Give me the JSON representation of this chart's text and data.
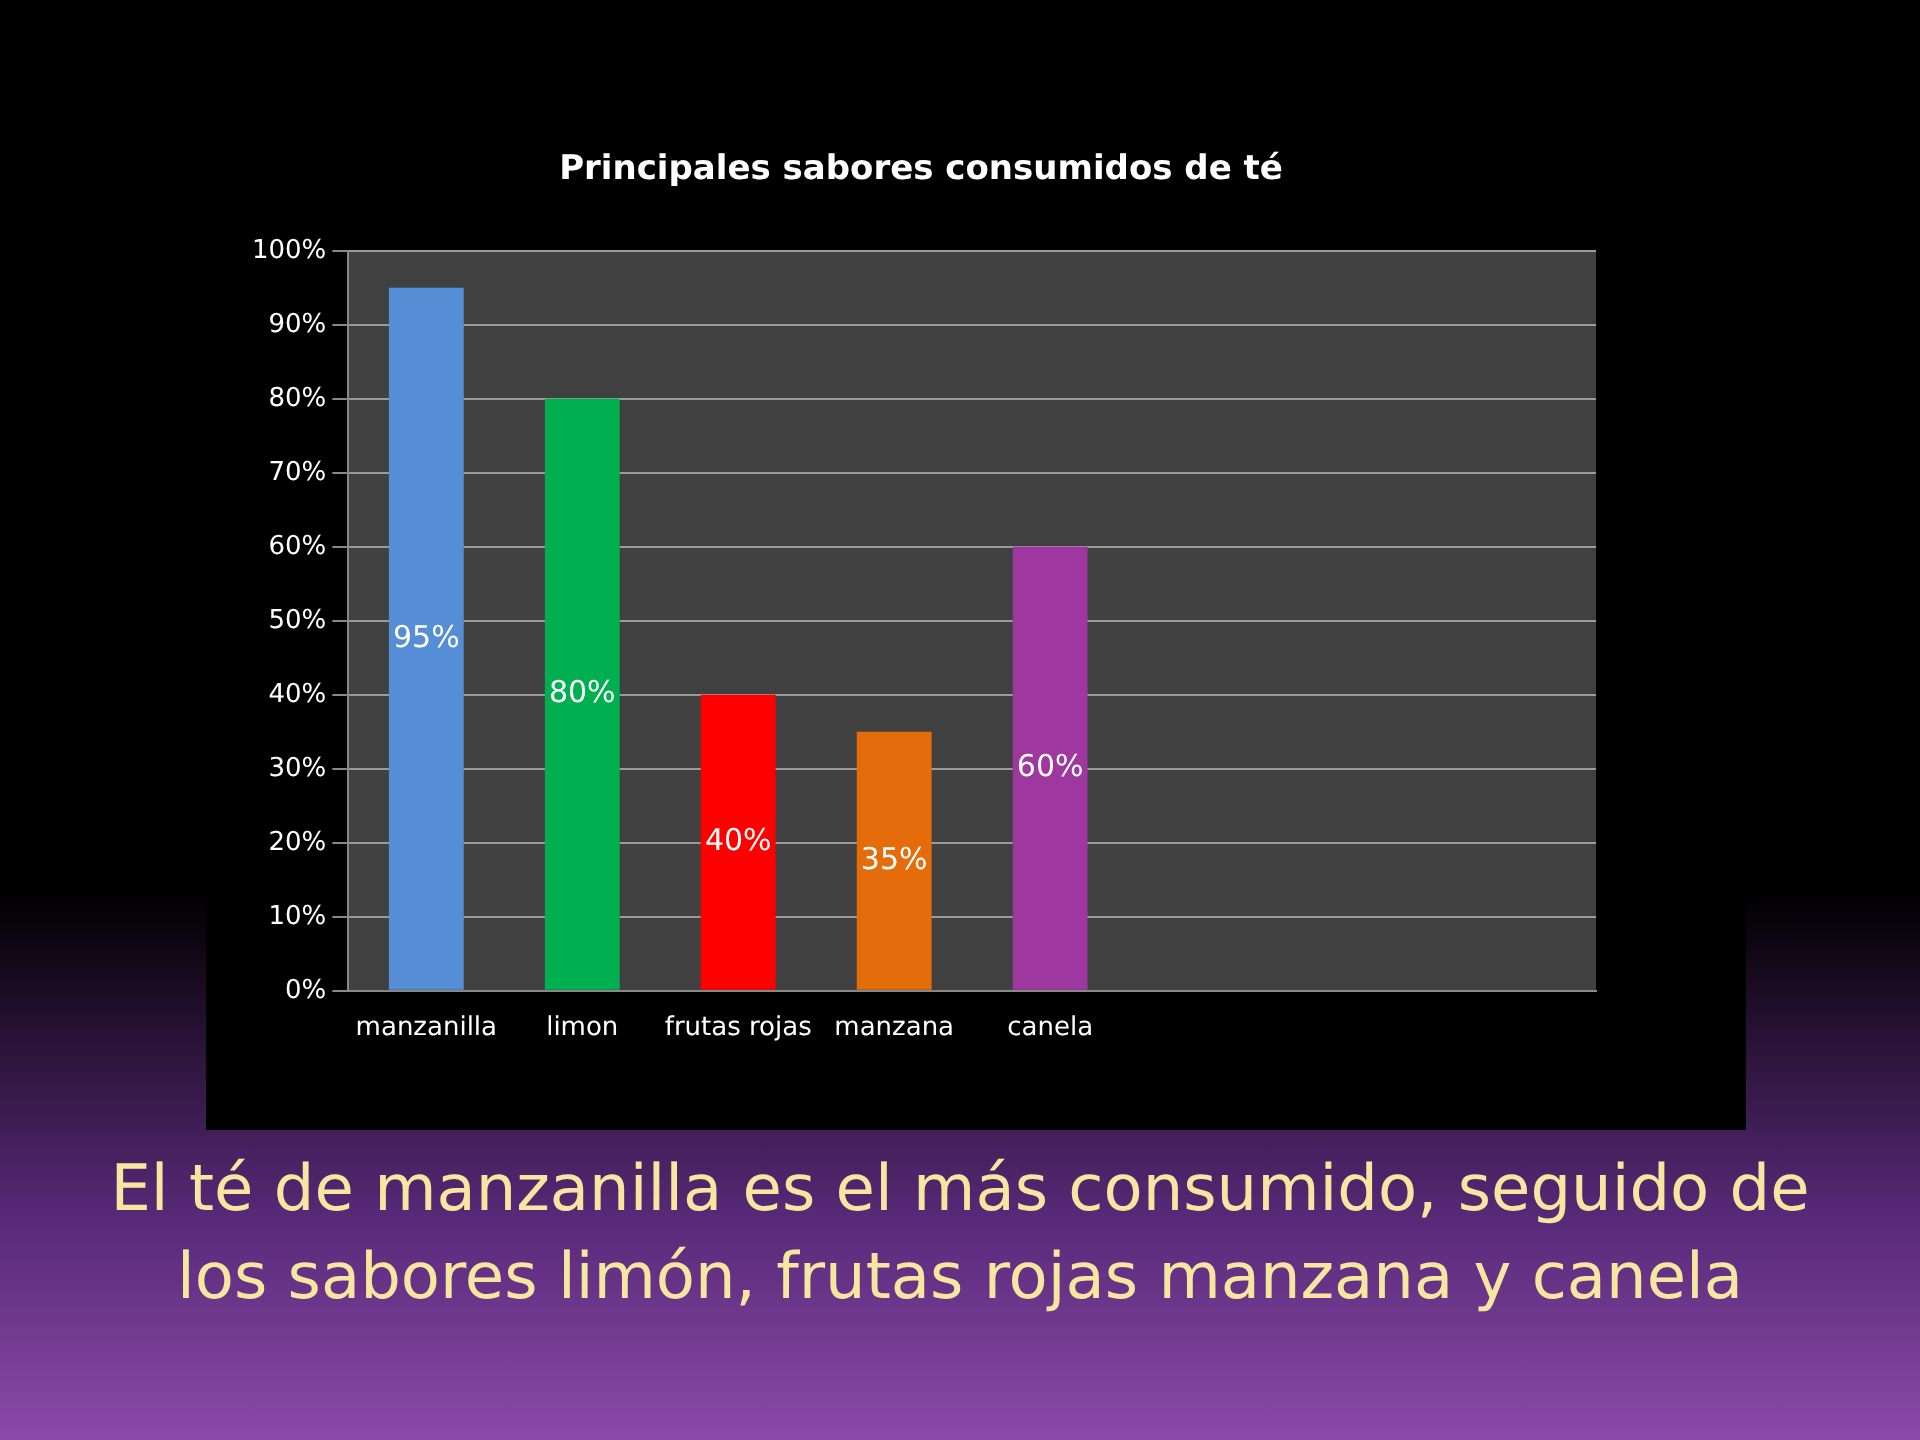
{
  "chart_data": {
    "type": "bar",
    "title": "Principales sabores consumidos de té",
    "categories": [
      "manzanilla",
      "limon",
      "frutas rojas",
      "manzana",
      "canela",
      null,
      null,
      null
    ],
    "values": [
      95,
      80,
      40,
      35,
      60,
      null,
      null,
      null
    ],
    "colors": [
      "#558ed5",
      "#00b050",
      "#ff0000",
      "#e46c0a",
      "#9e37a0",
      "#000000",
      "#000000",
      "#000000"
    ],
    "value_labels": [
      "95%",
      "80%",
      "40%",
      "35%",
      "60%",
      null,
      null,
      null
    ],
    "ylim": [
      0,
      100
    ],
    "yticks": [
      {
        "value": 0,
        "label": "0%"
      },
      {
        "value": 10,
        "label": "10%"
      },
      {
        "value": 20,
        "label": "20%"
      },
      {
        "value": 30,
        "label": "30%"
      },
      {
        "value": 40,
        "label": "40%"
      },
      {
        "value": 50,
        "label": "50%"
      },
      {
        "value": 60,
        "label": "60%"
      },
      {
        "value": 70,
        "label": "70%"
      },
      {
        "value": 80,
        "label": "80%"
      },
      {
        "value": 90,
        "label": "90%"
      },
      {
        "value": 100,
        "label": "100%"
      }
    ],
    "grid": "y",
    "annotations": [
      "El té de manzanilla es el más consumido, seguido de  los sabores limón, frutas rojas manzana y canela"
    ]
  }
}
